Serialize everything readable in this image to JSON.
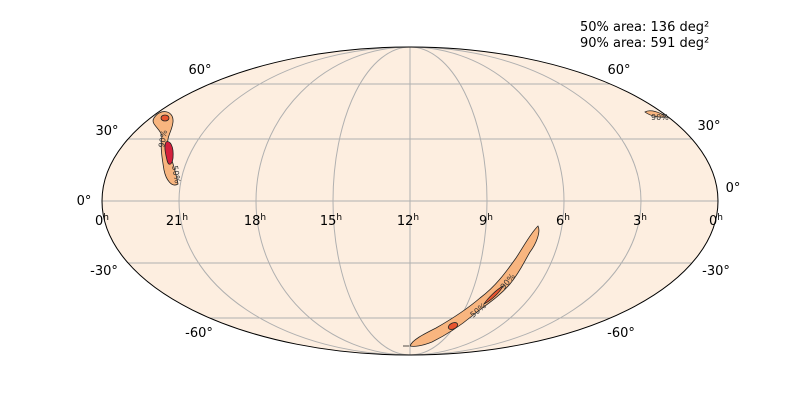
{
  "annotations": [
    "50% area: 136 deg²",
    "90% area: 591 deg²"
  ],
  "ra_unit": "h",
  "ra_labels": [
    "0",
    "21",
    "18",
    "15",
    "12",
    "9",
    "6",
    "3",
    "0"
  ],
  "dec_labels_left": [
    "60°",
    "30°",
    "0°",
    "-30°",
    "-60°"
  ],
  "dec_labels_right": [
    "60°",
    "30°",
    "0°",
    "-30°",
    "-60°"
  ],
  "contour_labels": [
    "90%",
    "50%",
    "90%",
    "90%",
    "50%"
  ]
}
